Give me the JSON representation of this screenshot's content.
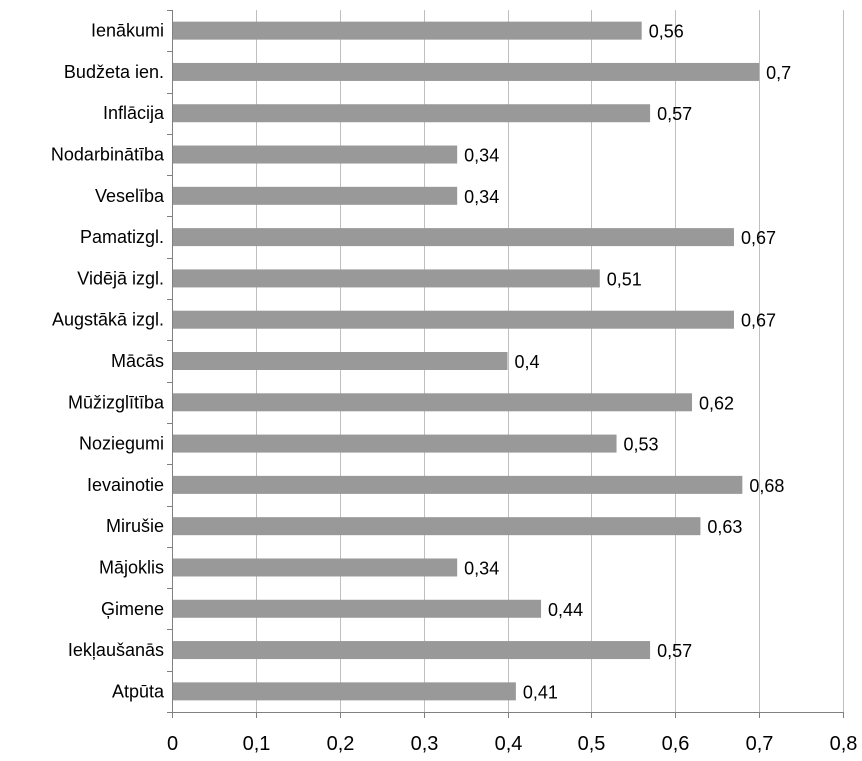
{
  "chart_data": {
    "type": "bar",
    "orientation": "horizontal",
    "title": "",
    "xlabel": "",
    "ylabel": "",
    "categories": [
      "Ienākumi",
      "Budžeta ien.",
      "Inflācija",
      "Nodarbinātība",
      "Veselība",
      "Pamatizgl.",
      "Vidējā izgl.",
      "Augstākā izgl.",
      "Mācās",
      "Mūžizglītība",
      "Noziegumi",
      "Ievainotie",
      "Mirušie",
      "Mājoklis",
      "Ģimene",
      "Iekļaušanās",
      "Atpūta"
    ],
    "values": [
      0.56,
      0.7,
      0.57,
      0.34,
      0.34,
      0.67,
      0.51,
      0.67,
      0.4,
      0.62,
      0.53,
      0.68,
      0.63,
      0.34,
      0.44,
      0.57,
      0.41
    ],
    "data_labels": [
      "0,56",
      "0,7",
      "0,57",
      "0,34",
      "0,34",
      "0,67",
      "0,51",
      "0,67",
      "0,4",
      "0,62",
      "0,53",
      "0,68",
      "0,63",
      "0,34",
      "0,44",
      "0,57",
      "0,41"
    ],
    "xlim": [
      0,
      0.8
    ],
    "x_ticks": [
      "0",
      "0,1",
      "0,2",
      "0,3",
      "0,4",
      "0,5",
      "0,6",
      "0,7",
      "0,8"
    ],
    "grid": "vertical",
    "legend": "none",
    "colors": {
      "bar": "#999999",
      "grid": "#bfbfbf",
      "axis": "#808080"
    }
  }
}
